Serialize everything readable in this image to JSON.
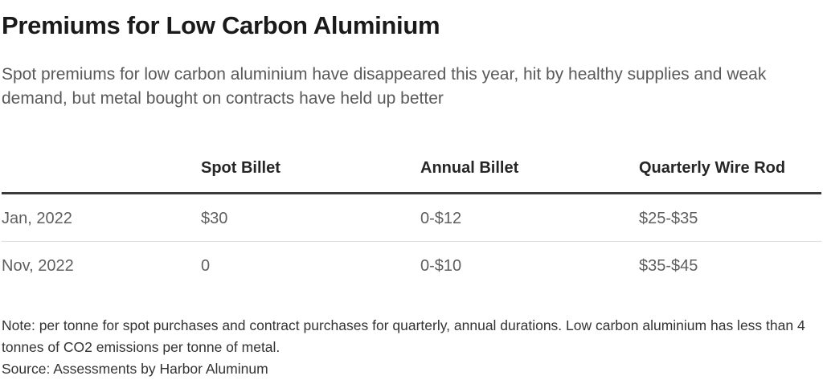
{
  "page": {
    "title": "Premiums for Low Carbon Aluminium",
    "subtitle": "Spot premiums for low carbon aluminium have disappeared this year, hit by healthy supplies and weak demand, but metal bought on contracts have held up better",
    "note": "Note: per tonne for spot purchases and contract purchases for quarterly, annual durations. Low carbon aluminium has less than 4 tonnes of CO2 emissions per tonne of metal.",
    "source": "Source: Assessments by Harbor Aluminum"
  },
  "table": {
    "columns": [
      "",
      "Spot Billet",
      "Annual Billet",
      "Quarterly Wire Rod"
    ],
    "rows": [
      {
        "label": "Jan, 2022",
        "spot_billet": "$30",
        "annual_billet": "0-$12",
        "quarterly_wire_rod": "$25-$35"
      },
      {
        "label": "Nov, 2022",
        "spot_billet": "0",
        "annual_billet": "0-$10",
        "quarterly_wire_rod": "$35-$45"
      }
    ]
  },
  "chart_data": {
    "type": "table",
    "title": "Premiums for Low Carbon Aluminium",
    "subtitle": "Spot premiums for low carbon aluminium have disappeared this year, hit by healthy supplies and weak demand, but metal bought on contracts have held up better",
    "columns": [
      "Spot Billet",
      "Annual Billet",
      "Quarterly Wire Rod"
    ],
    "row_labels": [
      "Jan, 2022",
      "Nov, 2022"
    ],
    "rows": [
      [
        "$30",
        "0-$12",
        "$25-$35"
      ],
      [
        "0",
        "0-$10",
        "$35-$45"
      ]
    ],
    "units": "USD per tonne",
    "note": "Note: per tonne for spot purchases and contract purchases for quarterly, annual durations. Low carbon aluminium has less than 4 tonnes of CO2 emissions per tonne of metal.",
    "source": "Source: Assessments by Harbor Aluminum"
  },
  "colors": {
    "background": "#ffffff",
    "title_text": "#1a1a1a",
    "body_text": "#5f5f5f",
    "header_text": "#262626",
    "note_text": "#333333",
    "header_rule": "#3a3a3a",
    "row_divider": "#dcdcdc"
  }
}
